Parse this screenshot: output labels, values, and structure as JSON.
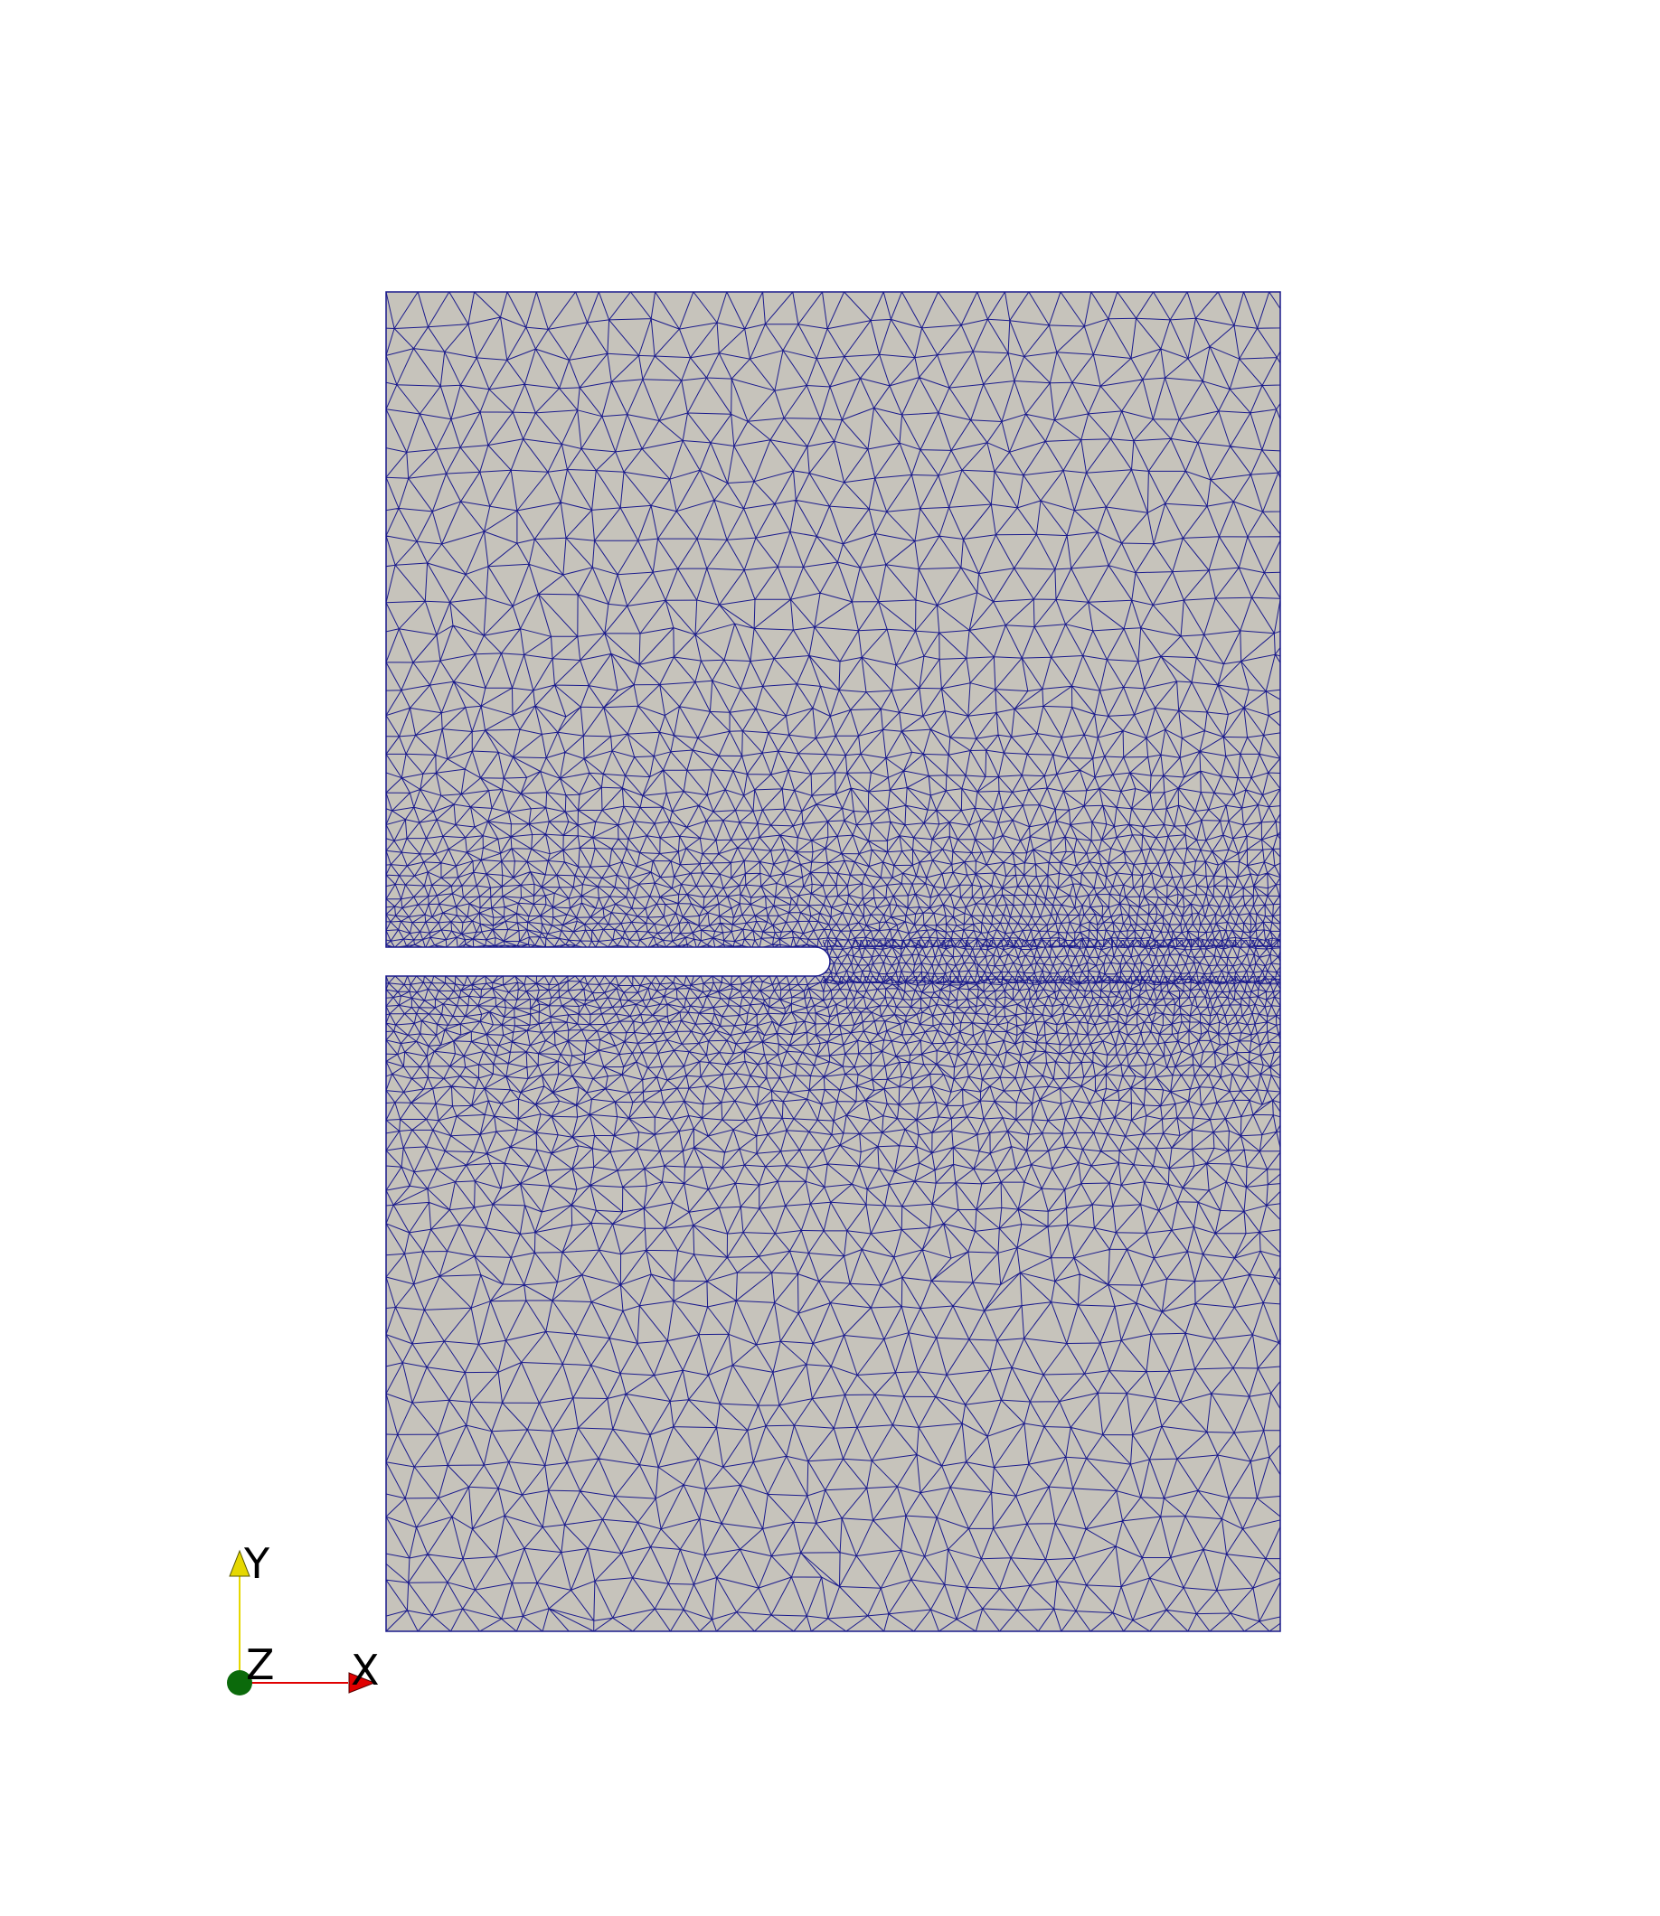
{
  "scene": {
    "background_color": "#ffffff",
    "mesh": {
      "fill_color": "#c6c3bb",
      "edge_color": "#1a1a8c",
      "element_type": "triangle"
    }
  },
  "orientation_axes": {
    "y": {
      "label": "Y",
      "color": "#e6d800"
    },
    "z": {
      "label": "Z",
      "color": "#0b6a0b"
    },
    "x": {
      "label": "X",
      "color": "#e00000"
    }
  }
}
